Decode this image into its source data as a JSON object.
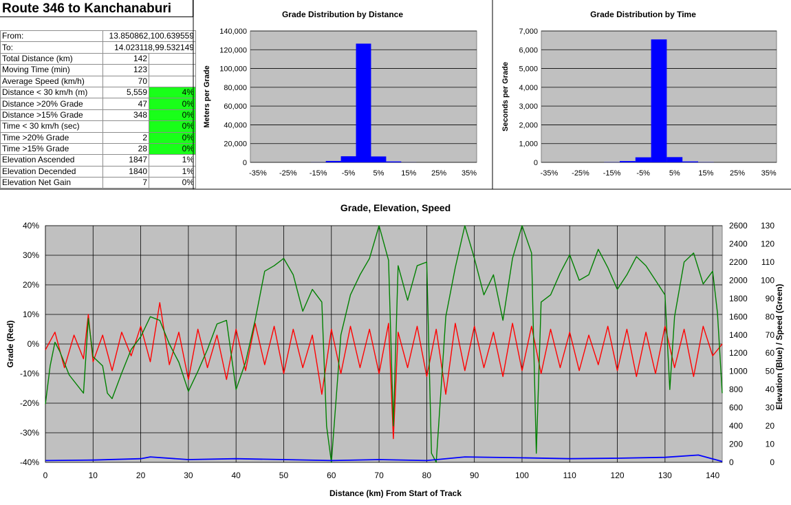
{
  "title": "Route 346 to Kanchanaburi",
  "stats": [
    {
      "label": "From:",
      "value": "13.850862,100.639559",
      "pct": "",
      "green": false,
      "span": true
    },
    {
      "label": "To:",
      "value": "14.023118,99.532149",
      "pct": "",
      "green": false,
      "span": true
    },
    {
      "label": "Total Distance (km)",
      "value": "142",
      "pct": "",
      "green": false
    },
    {
      "label": "Moving Time (min)",
      "value": "123",
      "pct": "",
      "green": false
    },
    {
      "label": "Average Speed (km/h)",
      "value": "70",
      "pct": "",
      "green": false
    },
    {
      "label": "Distance < 30 km/h (m)",
      "value": "5,559",
      "pct": "4%",
      "green": true
    },
    {
      "label": "Distance >20% Grade",
      "value": "47",
      "pct": "0%",
      "green": true
    },
    {
      "label": "Distance >15% Grade",
      "value": "348",
      "pct": "0%",
      "green": true
    },
    {
      "label": "Time < 30 km/h (sec)",
      "value": "",
      "pct": "0%",
      "green": true
    },
    {
      "label": "Time >20% Grade",
      "value": "2",
      "pct": "0%",
      "green": true
    },
    {
      "label": "Time >15% Grade",
      "value": "28",
      "pct": "0%",
      "green": true
    },
    {
      "label": "Elevation Ascended",
      "value": "1847",
      "pct": "1%",
      "green": false
    },
    {
      "label": "Elevation Decended",
      "value": "1840",
      "pct": "1%",
      "green": false
    },
    {
      "label": "Elevation Net Gain",
      "value": "7",
      "pct": "0%",
      "green": false
    }
  ],
  "colors": {
    "plot_bg": "#c0c0c0",
    "bar": "#0000ff",
    "grade": "#ff0000",
    "elevation": "#0000ff",
    "speed": "#008000",
    "green_cell": "#19ff19"
  },
  "chart_data": [
    {
      "type": "bar",
      "title": "Grade Distribution by Distance",
      "ylabel": "Meters per Grade",
      "xlabel": "",
      "categories": [
        "-35%",
        "-30%",
        "-25%",
        "-20%",
        "-15%",
        "-10%",
        "-5%",
        "0%",
        "5%",
        "10%",
        "15%",
        "20%",
        "25%",
        "30%",
        "35%"
      ],
      "x_tick_labels": [
        "-35%",
        "-25%",
        "-15%",
        "-5%",
        "5%",
        "15%",
        "25%",
        "35%"
      ],
      "values": [
        0,
        0,
        0,
        0,
        100,
        1500,
        6500,
        126500,
        6300,
        1000,
        100,
        0,
        0,
        0,
        0
      ],
      "ylim": [
        0,
        140000
      ],
      "y_ticks": [
        "0",
        "20,000",
        "40,000",
        "60,000",
        "80,000",
        "100,000",
        "120,000",
        "140,000"
      ],
      "grid": true
    },
    {
      "type": "bar",
      "title": "Grade Distribution by Time",
      "ylabel": "Seconds per Grade",
      "xlabel": "",
      "categories": [
        "-35%",
        "-30%",
        "-25%",
        "-20%",
        "-15%",
        "-10%",
        "-5%",
        "0%",
        "5%",
        "10%",
        "15%",
        "20%",
        "25%",
        "30%",
        "35%"
      ],
      "x_tick_labels": [
        "-35%",
        "-25%",
        "-15%",
        "-5%",
        "5%",
        "15%",
        "25%",
        "35%"
      ],
      "values": [
        0,
        0,
        0,
        0,
        10,
        70,
        270,
        6550,
        280,
        50,
        10,
        0,
        0,
        0,
        0
      ],
      "ylim": [
        0,
        7000
      ],
      "y_ticks": [
        "0",
        "1,000",
        "2,000",
        "3,000",
        "4,000",
        "5,000",
        "6,000",
        "7,000"
      ],
      "grid": true
    },
    {
      "type": "line",
      "title": "Grade, Elevation, Speed",
      "xlabel": "Distance (km) From Start of Track",
      "ylabel": "Grade (Red)",
      "y2label": "Elevation (Blue) / Speed (Green)",
      "xlim": [
        0,
        142
      ],
      "x_ticks": [
        "0",
        "10",
        "20",
        "30",
        "40",
        "50",
        "60",
        "70",
        "80",
        "90",
        "100",
        "110",
        "120",
        "130",
        "140"
      ],
      "ylim": [
        -40,
        40
      ],
      "y_ticks": [
        "-40%",
        "-30%",
        "-20%",
        "-10%",
        "0%",
        "10%",
        "20%",
        "30%",
        "40%"
      ],
      "elev_ticks": [
        "0",
        "200",
        "400",
        "600",
        "800",
        "1000",
        "1200",
        "1400",
        "1600",
        "1800",
        "2000",
        "2200",
        "2400",
        "2600"
      ],
      "speed_ticks": [
        "0",
        "10",
        "20",
        "30",
        "40",
        "50",
        "60",
        "70",
        "80",
        "90",
        "100",
        "110",
        "120",
        "130"
      ],
      "elev_ylim": [
        0,
        2600
      ],
      "speed_ylim": [
        0,
        130
      ],
      "series": [
        {
          "name": "Grade",
          "axis": "left",
          "x": [
            0,
            2,
            4,
            6,
            8,
            9,
            10,
            12,
            14,
            16,
            18,
            20,
            22,
            24,
            26,
            28,
            30,
            32,
            34,
            36,
            38,
            40,
            42,
            44,
            46,
            48,
            50,
            52,
            54,
            56,
            58,
            60,
            62,
            64,
            66,
            68,
            70,
            72,
            73,
            74,
            76,
            78,
            80,
            82,
            84,
            86,
            88,
            90,
            92,
            94,
            96,
            98,
            100,
            102,
            104,
            106,
            108,
            110,
            112,
            114,
            116,
            118,
            120,
            122,
            124,
            126,
            128,
            130,
            132,
            134,
            136,
            138,
            140,
            142
          ],
          "y": [
            -2,
            4,
            -8,
            3,
            -5,
            10,
            -6,
            3,
            -9,
            4,
            -4,
            6,
            -6,
            14,
            -7,
            4,
            -12,
            5,
            -8,
            3,
            -12,
            5,
            -9,
            7,
            -7,
            6,
            -10,
            5,
            -8,
            3,
            -17,
            5,
            -10,
            6,
            -8,
            5,
            -10,
            7,
            -32,
            4,
            -8,
            6,
            -11,
            5,
            -17,
            7,
            -9,
            6,
            -8,
            4,
            -11,
            7,
            -9,
            6,
            -10,
            5,
            -8,
            4,
            -9,
            3,
            -7,
            6,
            -9,
            5,
            -11,
            4,
            -10,
            6,
            -8,
            5,
            -11,
            6,
            -4,
            0
          ]
        },
        {
          "name": "Elevation",
          "axis": "right",
          "x": [
            0,
            10,
            20,
            22,
            30,
            40,
            50,
            60,
            70,
            80,
            88,
            100,
            110,
            120,
            130,
            137,
            142
          ],
          "y": [
            20,
            25,
            40,
            60,
            30,
            40,
            30,
            20,
            30,
            20,
            60,
            50,
            40,
            45,
            55,
            80,
            10
          ]
        },
        {
          "name": "Speed",
          "axis": "right2",
          "x": [
            0,
            1,
            2,
            3,
            5,
            8,
            9,
            10,
            12,
            13,
            14,
            16,
            18,
            20,
            22,
            24,
            26,
            28,
            30,
            32,
            34,
            36,
            38,
            40,
            42,
            44,
            46,
            48,
            50,
            52,
            54,
            56,
            58,
            59,
            60,
            62,
            64,
            66,
            68,
            70,
            72,
            73,
            74,
            76,
            78,
            80,
            81,
            82,
            84,
            86,
            88,
            90,
            92,
            94,
            96,
            98,
            100,
            102,
            103,
            104,
            106,
            108,
            110,
            112,
            114,
            116,
            118,
            120,
            122,
            124,
            126,
            128,
            130,
            131,
            132,
            134,
            136,
            138,
            140,
            141,
            142
          ],
          "y": [
            32,
            53,
            66,
            61,
            48,
            38,
            79,
            58,
            53,
            38,
            35,
            49,
            62,
            69,
            80,
            78,
            65,
            55,
            39,
            50,
            62,
            76,
            78,
            40,
            55,
            78,
            105,
            108,
            112,
            103,
            83,
            95,
            88,
            20,
            0,
            70,
            92,
            103,
            112,
            130,
            111,
            20,
            108,
            89,
            108,
            110,
            5,
            0,
            80,
            107,
            130,
            112,
            92,
            103,
            78,
            112,
            130,
            115,
            5,
            88,
            92,
            104,
            114,
            100,
            103,
            117,
            107,
            95,
            103,
            113,
            108,
            100,
            92,
            40,
            80,
            110,
            115,
            98,
            105,
            82,
            38
          ]
        }
      ]
    }
  ]
}
